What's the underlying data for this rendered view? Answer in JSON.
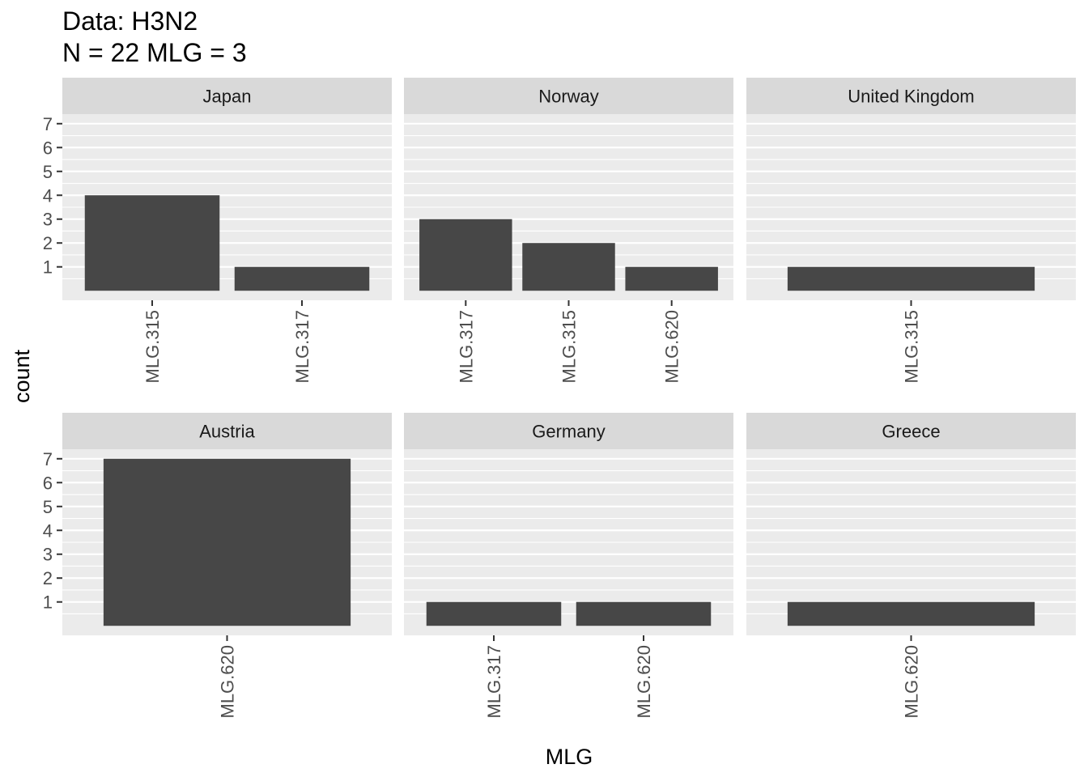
{
  "title_lines": [
    "Data: H3N2",
    "N = 22 MLG = 3"
  ],
  "chart_data": {
    "type": "bar",
    "facet": "wrap",
    "facet_rows": 2,
    "facet_cols": 3,
    "xlabel": "MLG",
    "ylabel": "count",
    "ylim": [
      0,
      7
    ],
    "y_ticks": [
      1,
      2,
      3,
      4,
      5,
      6,
      7
    ],
    "grid": true,
    "x_tick_rotation": "vertical",
    "colors": {
      "bar": "#474747",
      "panel_bg": "#ebebeb",
      "strip_bg": "#d9d9d9",
      "grid": "#ffffff"
    },
    "panels": [
      {
        "strip": "Japan",
        "categories": [
          "MLG.315",
          "MLG.317"
        ],
        "values": [
          4,
          1
        ]
      },
      {
        "strip": "Norway",
        "categories": [
          "MLG.317",
          "MLG.315",
          "MLG.620"
        ],
        "values": [
          3,
          2,
          1
        ]
      },
      {
        "strip": "United Kingdom",
        "categories": [
          "MLG.315"
        ],
        "values": [
          1
        ]
      },
      {
        "strip": "Austria",
        "categories": [
          "MLG.620"
        ],
        "values": [
          7
        ]
      },
      {
        "strip": "Germany",
        "categories": [
          "MLG.317",
          "MLG.620"
        ],
        "values": [
          1,
          1
        ]
      },
      {
        "strip": "Greece",
        "categories": [
          "MLG.620"
        ],
        "values": [
          1
        ]
      }
    ]
  }
}
